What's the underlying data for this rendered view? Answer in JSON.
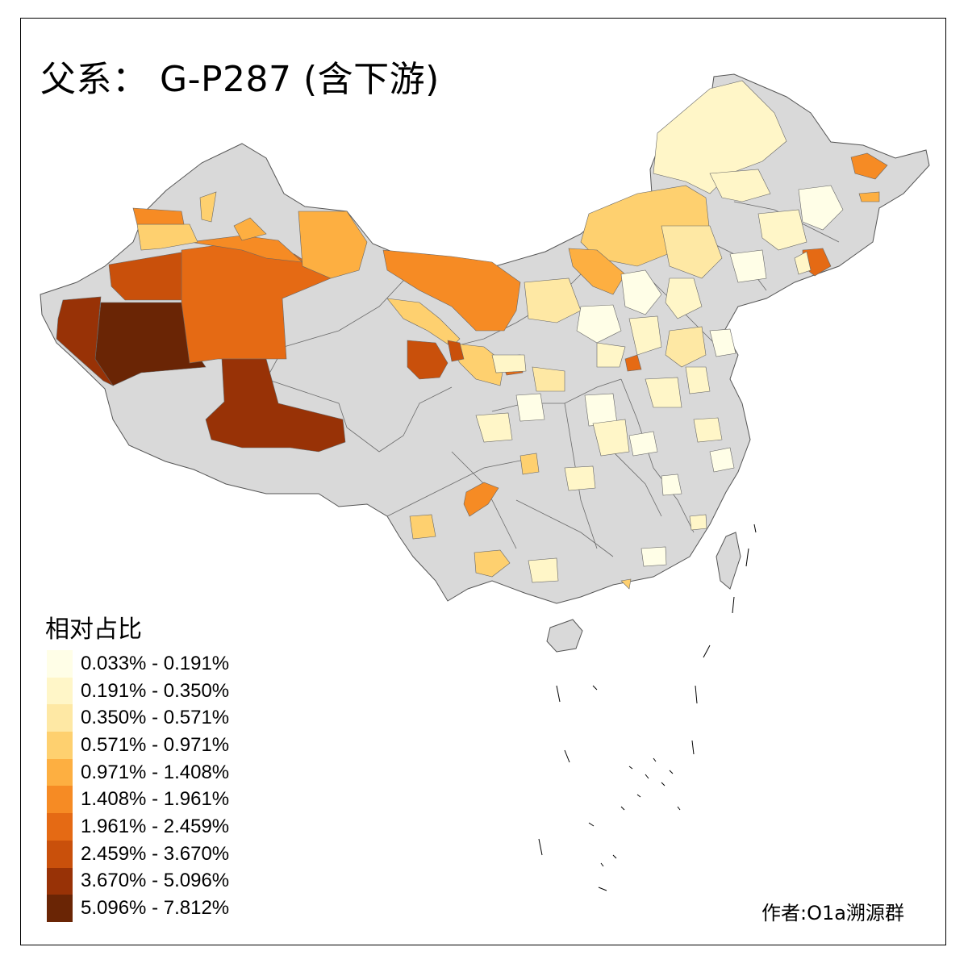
{
  "title": "父系： G-P287 (含下游)",
  "legend": {
    "title": "相对占比",
    "items": [
      {
        "label": "0.033% - 0.191%",
        "color": "#FFFEE7"
      },
      {
        "label": "0.191% - 0.350%",
        "color": "#FFF6C8"
      },
      {
        "label": "0.350% - 0.571%",
        "color": "#FEE8A4"
      },
      {
        "label": "0.571% - 0.971%",
        "color": "#FED06F"
      },
      {
        "label": "0.971% - 1.408%",
        "color": "#FDAF41"
      },
      {
        "label": "1.408% - 1.961%",
        "color": "#F68B24"
      },
      {
        "label": "1.961% - 2.459%",
        "color": "#E56A14"
      },
      {
        "label": "2.459% - 3.670%",
        "color": "#C9500B"
      },
      {
        "label": "3.670% - 5.096%",
        "color": "#983206"
      },
      {
        "label": "5.096% - 7.812%",
        "color": "#6A2505"
      }
    ]
  },
  "no_data_color": "#D9D9D9",
  "credit": "作者:O1a溯源群"
}
